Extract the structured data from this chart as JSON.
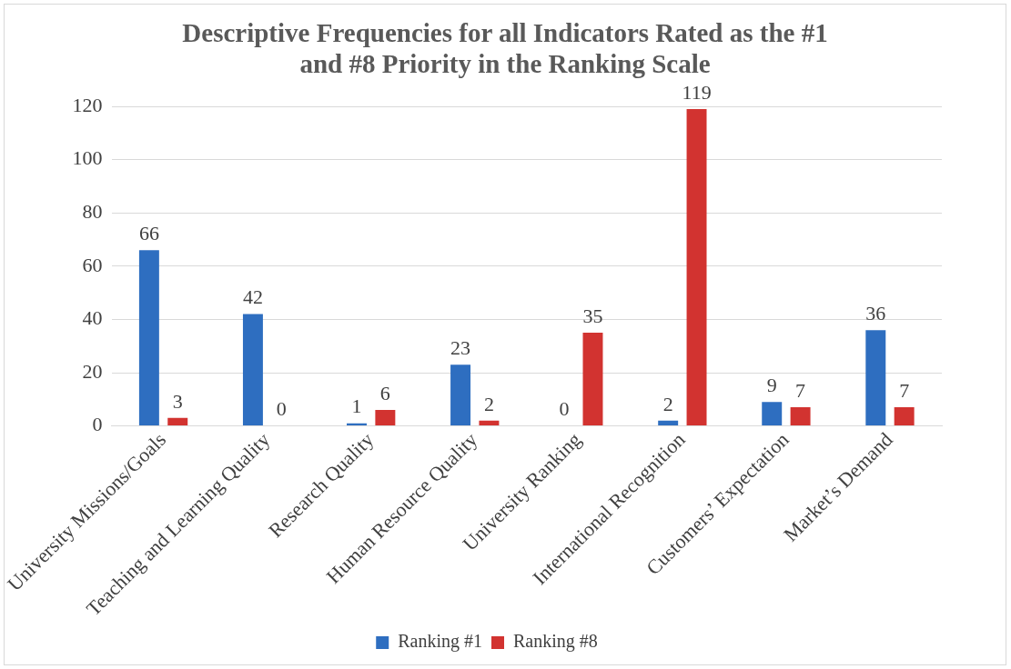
{
  "chart_data": {
    "type": "bar",
    "title": "Descriptive Frequencies for all Indicators Rated as the #1 and #8 Priority in the Ranking Scale",
    "categories": [
      "University Missions/Goals",
      "Teaching and Learning Quality",
      "Research Quality",
      "Human Resource Quality",
      "University Ranking",
      "International Recognition",
      "Customers’ Expectation",
      "Market’s Demand"
    ],
    "series": [
      {
        "name": "Ranking #1",
        "color": "#2e6ec0",
        "values": [
          66,
          42,
          1,
          23,
          0,
          2,
          9,
          36
        ]
      },
      {
        "name": "Ranking #8",
        "color": "#d23330",
        "values": [
          3,
          0,
          6,
          2,
          35,
          119,
          7,
          7
        ]
      }
    ],
    "ylim": [
      0,
      120
    ],
    "yticks": [
      0,
      20,
      40,
      60,
      80,
      100,
      120
    ],
    "grid": "y",
    "legend": "bottom",
    "data_labels": true
  }
}
